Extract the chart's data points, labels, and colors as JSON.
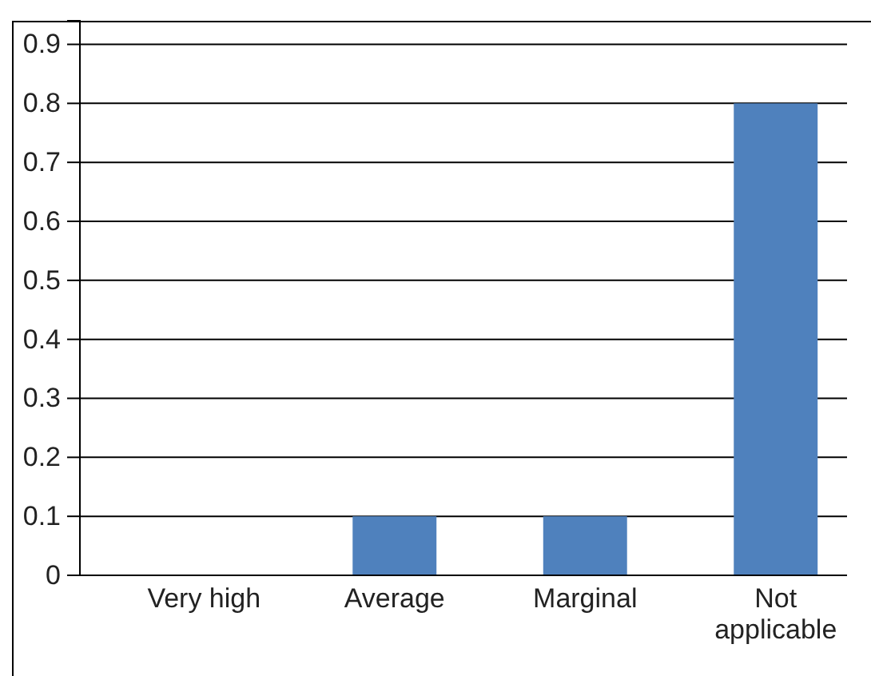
{
  "chart_data": {
    "type": "bar",
    "categories": [
      "Very high",
      "Average",
      "Marginal",
      "Not applicable"
    ],
    "values": [
      0,
      0.1,
      0.1,
      0.8
    ],
    "color": "#4f81bd",
    "ylim": [
      0,
      0.94
    ],
    "yticks": [
      0,
      0.1,
      0.2,
      0.3,
      0.4,
      0.5,
      0.6,
      0.7,
      0.8,
      0.9
    ],
    "grid": "y"
  }
}
